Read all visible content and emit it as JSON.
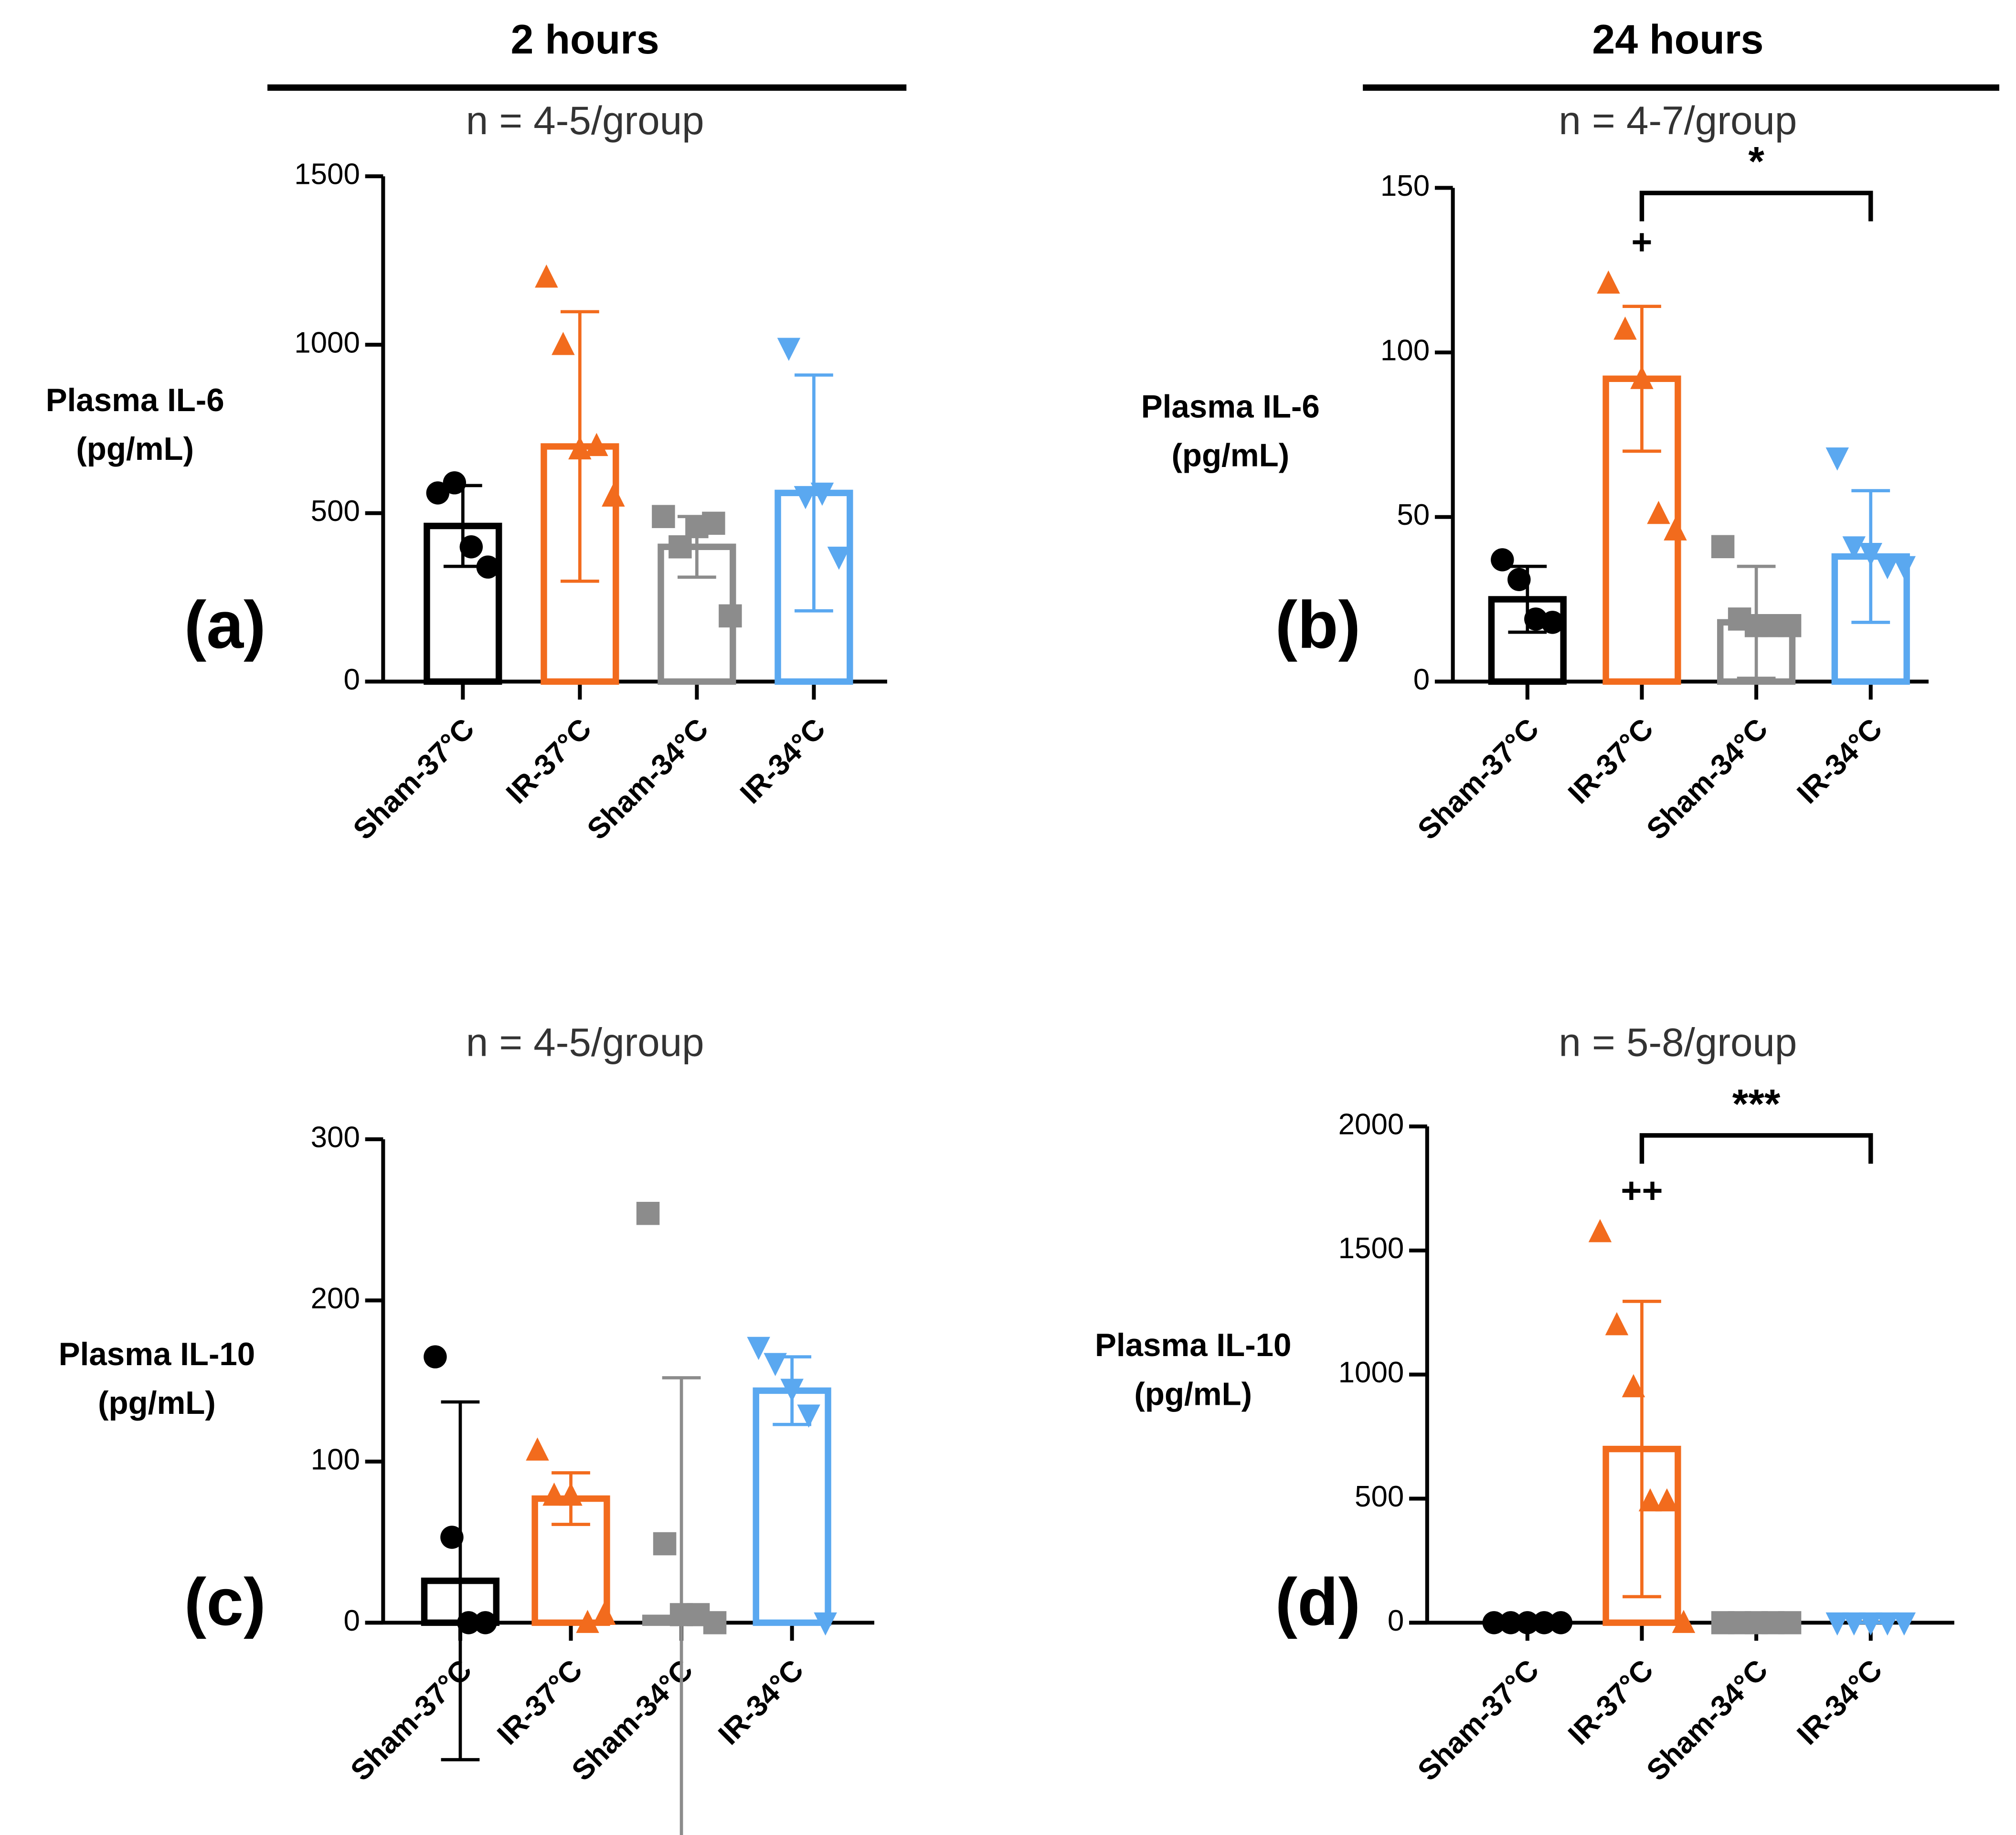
{
  "chart_data": [
    {
      "type": "bar",
      "column_title": "2 hours",
      "subtitle": "n = 4-5/group",
      "panel_label": "(a)",
      "ylabel": [
        "Plasma IL-6",
        "(pg/mL)"
      ],
      "categories": [
        "Sham-37°C",
        "IR-37°C",
        "Sham-34°C",
        "IR-34°C"
      ],
      "colors": [
        "#000000",
        "#f26b1d",
        "#8c8c8c",
        "#5aa8f0"
      ],
      "markers": [
        "circle",
        "triangle",
        "square",
        "triangle-down"
      ],
      "values": [
        462,
        698,
        400,
        560
      ],
      "errors": [
        120,
        400,
        90,
        350
      ],
      "points": [
        [
          560,
          590,
          400,
          340
        ],
        [
          1200,
          1000,
          690,
          700,
          550
        ],
        [
          490,
          400,
          460,
          470,
          195
        ],
        [
          990,
          550,
          560,
          370
        ]
      ],
      "ylim": [
        0,
        1500
      ],
      "yticks": [
        0,
        500,
        1000,
        1500
      ]
    },
    {
      "type": "bar",
      "column_title": "24 hours",
      "subtitle": "n = 4-7/group",
      "panel_label": "(b)",
      "ylabel": [
        "Plasma IL-6",
        "(pg/mL)"
      ],
      "categories": [
        "Sham-37°C",
        "IR-37°C",
        "Sham-34°C",
        "IR-34°C"
      ],
      "colors": [
        "#000000",
        "#f26b1d",
        "#8c8c8c",
        "#5aa8f0"
      ],
      "markers": [
        "circle",
        "triangle",
        "square",
        "triangle-down"
      ],
      "values": [
        25,
        92,
        18,
        38
      ],
      "errors": [
        10,
        22,
        17,
        20
      ],
      "points": [
        [
          37,
          31,
          19,
          18
        ],
        [
          121,
          107,
          92,
          51,
          46
        ],
        [
          41,
          19,
          17,
          17,
          17
        ],
        [
          68,
          41,
          39,
          35,
          35
        ]
      ],
      "ylim": [
        0,
        150
      ],
      "yticks": [
        0,
        50,
        100,
        150
      ],
      "annotations": [
        {
          "text": "+",
          "category": 1
        }
      ],
      "bracket": {
        "text": "*",
        "from": 1,
        "to": 3
      }
    },
    {
      "type": "bar",
      "subtitle": "n = 4-5/group",
      "panel_label": "(c)",
      "ylabel": [
        "Plasma IL-10",
        "(pg/mL)"
      ],
      "categories": [
        "Sham-37°C",
        "IR-37°C",
        "Sham-34°C",
        "IR-34°C"
      ],
      "colors": [
        "#000000",
        "#f26b1d",
        "#8c8c8c",
        "#5aa8f0"
      ],
      "markers": [
        "circle",
        "triangle",
        "square",
        "triangle-down"
      ],
      "values": [
        26,
        77,
        3,
        144
      ],
      "errors": [
        111,
        16,
        149,
        21
      ],
      "points": [
        [
          165,
          53,
          0,
          0
        ],
        [
          107,
          79,
          79,
          0,
          5
        ],
        [
          254,
          49,
          5,
          5,
          0
        ],
        [
          171,
          161,
          145,
          129,
          0
        ]
      ],
      "ylim": [
        0,
        300
      ],
      "yticks": [
        0,
        100,
        200,
        300
      ]
    },
    {
      "type": "bar",
      "subtitle": "n = 5-8/group",
      "panel_label": "(d)",
      "ylabel": [
        "Plasma IL-10",
        "(pg/mL)"
      ],
      "categories": [
        "Sham-37°C",
        "IR-37°C",
        "Sham-34°C",
        "IR-34°C"
      ],
      "colors": [
        "#000000",
        "#f26b1d",
        "#8c8c8c",
        "#5aa8f0"
      ],
      "markers": [
        "circle",
        "triangle",
        "square",
        "triangle-down"
      ],
      "values": [
        0,
        700,
        0,
        0
      ],
      "errors": [
        0,
        595,
        0,
        0
      ],
      "points": [
        [
          0,
          0,
          0,
          0,
          0
        ],
        [
          1575,
          1200,
          950,
          490,
          490,
          0
        ],
        [
          0,
          0,
          0,
          0,
          0
        ],
        [
          0,
          0,
          0,
          0,
          0
        ]
      ],
      "ylim": [
        0,
        2000
      ],
      "yticks": [
        0,
        500,
        1000,
        1500,
        2000
      ],
      "annotations": [
        {
          "text": "++",
          "category": 1
        }
      ],
      "bracket": {
        "text": "***",
        "from": 1,
        "to": 3
      }
    }
  ]
}
